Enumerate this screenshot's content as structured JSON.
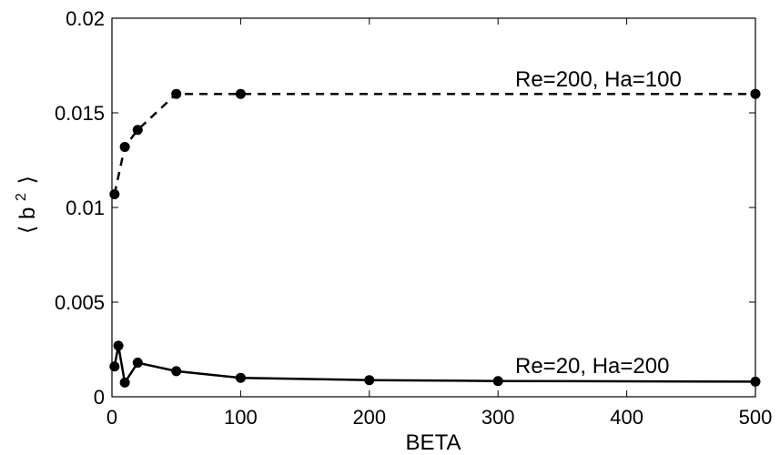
{
  "chart_data": {
    "type": "line",
    "xlabel": "BETA",
    "ylabel_main": "⟨ b",
    "ylabel_sup": "2",
    "ylabel_close": "⟩",
    "xlim": [
      0,
      500
    ],
    "ylim": [
      0,
      0.02
    ],
    "xticks": [
      0,
      100,
      200,
      300,
      400,
      500
    ],
    "xtick_labels": [
      "0",
      "100",
      "200",
      "300",
      "400",
      "500"
    ],
    "yticks": [
      0,
      0.005,
      0.01,
      0.015,
      0.02
    ],
    "ytick_labels": [
      "0",
      "0.005",
      "0.01",
      "0.015",
      "0.02"
    ],
    "grid": false,
    "series": [
      {
        "name": "Re=200, Ha=100",
        "line_style": "dashed",
        "marker": "filled-circle",
        "x": [
          2,
          10,
          20,
          50,
          100,
          500
        ],
        "y": [
          0.0107,
          0.0132,
          0.0141,
          0.016,
          0.016,
          0.016
        ]
      },
      {
        "name": "Re=20, Ha=200",
        "line_style": "solid",
        "marker": "filled-circle",
        "x": [
          2,
          5,
          10,
          20,
          50,
          100,
          200,
          300,
          500
        ],
        "y": [
          0.0016,
          0.0027,
          0.00075,
          0.0018,
          0.00135,
          0.001,
          0.00088,
          0.00083,
          0.0008
        ]
      }
    ]
  }
}
